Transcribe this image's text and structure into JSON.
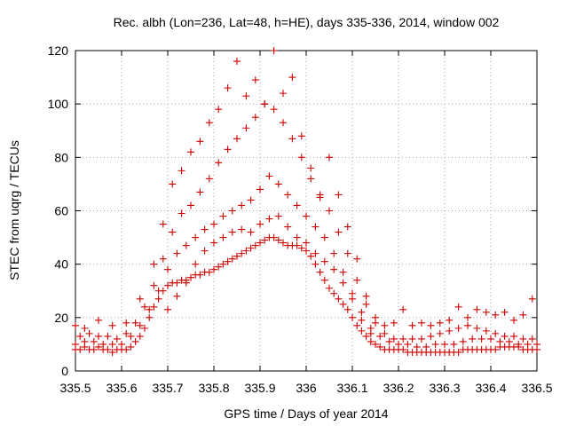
{
  "chart_data": {
    "type": "scatter",
    "title": "Rec. albh (Lon=236, Lat=48, h=HE), days 335-336, 2014, window 002",
    "xlabel": "GPS time / Days of year 2014",
    "ylabel": "STEC from uqrg / TECUs",
    "xlim": [
      335.5,
      336.5
    ],
    "ylim": [
      0,
      120
    ],
    "x_ticks": [
      "335.5",
      "335.6",
      "335.7",
      "335.8",
      "335.9",
      "336",
      "336.1",
      "336.2",
      "336.3",
      "336.4",
      "336.5"
    ],
    "y_ticks": [
      "0",
      "20",
      "40",
      "60",
      "80",
      "100",
      "120"
    ],
    "grid": true,
    "marker": "+",
    "color": "#cc0000",
    "series": [
      {
        "points": [
          [
            335.5,
            8
          ],
          [
            335.51,
            8
          ],
          [
            335.52,
            9
          ],
          [
            335.53,
            8
          ],
          [
            335.54,
            8
          ],
          [
            335.55,
            9
          ],
          [
            335.56,
            8
          ],
          [
            335.57,
            8
          ],
          [
            335.58,
            7
          ],
          [
            335.59,
            8
          ],
          [
            335.6,
            8
          ],
          [
            335.61,
            8
          ],
          [
            335.62,
            9
          ],
          [
            335.63,
            11
          ],
          [
            335.64,
            13
          ],
          [
            335.65,
            16
          ],
          [
            335.66,
            20
          ],
          [
            335.67,
            24
          ],
          [
            335.68,
            27
          ],
          [
            335.69,
            30
          ],
          [
            335.7,
            32
          ],
          [
            335.71,
            33
          ],
          [
            335.72,
            33
          ],
          [
            335.73,
            34
          ],
          [
            335.74,
            34
          ],
          [
            335.75,
            35
          ],
          [
            335.76,
            36
          ],
          [
            335.77,
            36
          ],
          [
            335.78,
            37
          ],
          [
            335.79,
            37
          ],
          [
            335.8,
            38
          ],
          [
            335.81,
            39
          ],
          [
            335.82,
            40
          ],
          [
            335.83,
            41
          ],
          [
            335.84,
            42
          ],
          [
            335.85,
            43
          ],
          [
            335.86,
            44
          ],
          [
            335.87,
            45
          ],
          [
            335.88,
            46
          ],
          [
            335.89,
            47
          ],
          [
            335.9,
            48
          ],
          [
            335.91,
            49
          ],
          [
            335.92,
            50
          ],
          [
            335.93,
            50
          ],
          [
            335.94,
            49
          ],
          [
            335.95,
            48
          ],
          [
            335.96,
            47
          ],
          [
            335.97,
            47
          ],
          [
            335.98,
            47
          ],
          [
            335.99,
            46
          ],
          [
            336.0,
            45
          ],
          [
            336.01,
            43
          ],
          [
            336.02,
            40
          ],
          [
            336.03,
            37
          ],
          [
            336.04,
            34
          ],
          [
            336.05,
            31
          ],
          [
            336.06,
            29
          ],
          [
            336.07,
            27
          ],
          [
            336.08,
            25
          ],
          [
            336.09,
            23
          ],
          [
            336.1,
            20
          ],
          [
            336.11,
            17
          ],
          [
            336.12,
            15
          ],
          [
            336.13,
            13
          ],
          [
            336.14,
            11
          ],
          [
            336.15,
            10
          ],
          [
            336.16,
            9
          ],
          [
            336.17,
            8
          ],
          [
            336.18,
            8
          ],
          [
            336.19,
            8
          ],
          [
            336.2,
            8
          ],
          [
            336.21,
            8
          ],
          [
            336.22,
            7
          ],
          [
            336.23,
            7
          ],
          [
            336.24,
            7
          ],
          [
            336.25,
            7
          ],
          [
            336.26,
            7
          ],
          [
            336.27,
            7
          ],
          [
            336.28,
            7
          ],
          [
            336.29,
            7
          ],
          [
            336.3,
            7
          ],
          [
            336.31,
            7
          ],
          [
            336.32,
            7
          ],
          [
            336.33,
            7
          ],
          [
            336.34,
            8
          ],
          [
            336.35,
            8
          ],
          [
            336.36,
            8
          ],
          [
            336.37,
            8
          ],
          [
            336.38,
            8
          ],
          [
            336.39,
            8
          ],
          [
            336.4,
            8
          ],
          [
            336.41,
            8
          ],
          [
            336.42,
            9
          ],
          [
            336.43,
            9
          ],
          [
            336.44,
            9
          ],
          [
            336.45,
            9
          ],
          [
            336.46,
            9
          ],
          [
            336.47,
            8
          ],
          [
            336.48,
            8
          ],
          [
            336.49,
            8
          ],
          [
            336.5,
            8
          ]
        ]
      },
      {
        "points": [
          [
            335.5,
            10
          ],
          [
            335.52,
            11
          ],
          [
            335.54,
            11
          ],
          [
            335.56,
            10
          ],
          [
            335.58,
            10
          ],
          [
            335.6,
            10
          ],
          [
            335.62,
            13
          ],
          [
            335.64,
            17
          ],
          [
            335.66,
            23
          ],
          [
            335.68,
            30
          ],
          [
            335.7,
            38
          ],
          [
            335.72,
            44
          ],
          [
            335.74,
            47
          ],
          [
            335.76,
            50
          ],
          [
            335.78,
            53
          ],
          [
            335.8,
            55
          ],
          [
            335.82,
            58
          ],
          [
            335.84,
            60
          ],
          [
            335.86,
            62
          ],
          [
            335.88,
            64
          ],
          [
            335.9,
            68
          ],
          [
            335.92,
            73
          ],
          [
            335.94,
            70
          ],
          [
            335.96,
            66
          ],
          [
            335.98,
            62
          ],
          [
            336.0,
            58
          ],
          [
            336.02,
            54
          ],
          [
            336.04,
            50
          ],
          [
            336.06,
            44
          ],
          [
            336.08,
            37
          ],
          [
            336.1,
            29
          ],
          [
            336.12,
            22
          ],
          [
            336.14,
            16
          ],
          [
            336.16,
            13
          ],
          [
            336.18,
            11
          ],
          [
            336.2,
            10
          ],
          [
            336.22,
            10
          ],
          [
            336.24,
            9
          ],
          [
            336.26,
            9
          ],
          [
            336.28,
            10
          ],
          [
            336.3,
            10
          ],
          [
            336.32,
            10
          ],
          [
            336.34,
            11
          ],
          [
            336.36,
            12
          ],
          [
            336.38,
            12
          ],
          [
            336.4,
            12
          ],
          [
            336.42,
            11
          ],
          [
            336.44,
            11
          ],
          [
            336.46,
            10
          ],
          [
            336.48,
            10
          ],
          [
            336.5,
            10
          ]
        ]
      },
      {
        "points": [
          [
            335.51,
            13
          ],
          [
            335.53,
            14
          ],
          [
            335.55,
            13
          ],
          [
            335.57,
            13
          ],
          [
            335.59,
            12
          ],
          [
            335.61,
            14
          ],
          [
            335.63,
            18
          ],
          [
            335.65,
            24
          ],
          [
            335.67,
            32
          ],
          [
            335.69,
            42
          ],
          [
            335.71,
            52
          ],
          [
            335.73,
            59
          ],
          [
            335.75,
            62
          ],
          [
            335.77,
            67
          ],
          [
            335.79,
            72
          ],
          [
            335.81,
            78
          ],
          [
            335.83,
            83
          ],
          [
            335.85,
            87
          ],
          [
            335.87,
            91
          ],
          [
            335.89,
            95
          ],
          [
            335.91,
            100
          ],
          [
            335.93,
            98
          ],
          [
            335.95,
            93
          ],
          [
            335.97,
            87
          ],
          [
            335.99,
            80
          ],
          [
            336.01,
            72
          ],
          [
            336.03,
            65
          ],
          [
            336.05,
            60
          ],
          [
            336.07,
            52
          ],
          [
            336.09,
            44
          ],
          [
            336.11,
            34
          ],
          [
            336.13,
            25
          ],
          [
            336.15,
            18
          ],
          [
            336.17,
            14
          ],
          [
            336.19,
            12
          ],
          [
            336.21,
            12
          ],
          [
            336.23,
            12
          ],
          [
            336.25,
            12
          ],
          [
            336.27,
            13
          ],
          [
            336.29,
            14
          ],
          [
            336.31,
            15
          ],
          [
            336.33,
            16
          ],
          [
            336.35,
            17
          ],
          [
            336.37,
            16
          ],
          [
            336.39,
            15
          ],
          [
            336.41,
            14
          ],
          [
            336.43,
            13
          ],
          [
            336.45,
            13
          ],
          [
            336.47,
            12
          ],
          [
            336.49,
            12
          ]
        ]
      },
      {
        "points": [
          [
            335.5,
            17
          ],
          [
            335.52,
            16
          ],
          [
            335.55,
            19
          ],
          [
            335.58,
            17
          ],
          [
            335.61,
            18
          ],
          [
            335.64,
            27
          ],
          [
            335.67,
            40
          ],
          [
            335.69,
            55
          ],
          [
            335.71,
            70
          ],
          [
            335.73,
            75
          ],
          [
            335.75,
            82
          ],
          [
            335.77,
            86
          ],
          [
            335.79,
            93
          ],
          [
            335.81,
            98
          ],
          [
            335.83,
            106
          ],
          [
            335.85,
            116
          ],
          [
            335.87,
            103
          ],
          [
            335.89,
            109
          ],
          [
            335.91,
            100
          ],
          [
            335.93,
            120
          ],
          [
            335.95,
            104
          ],
          [
            335.97,
            110
          ],
          [
            335.99,
            88
          ],
          [
            336.01,
            76
          ],
          [
            336.03,
            66
          ],
          [
            336.05,
            80
          ],
          [
            336.07,
            66
          ],
          [
            336.09,
            54
          ],
          [
            336.11,
            42
          ],
          [
            336.13,
            28
          ],
          [
            336.15,
            20
          ],
          [
            336.17,
            17
          ],
          [
            336.19,
            18
          ],
          [
            336.21,
            23
          ],
          [
            336.23,
            17
          ],
          [
            336.25,
            18
          ],
          [
            336.27,
            17
          ],
          [
            336.29,
            18
          ],
          [
            336.31,
            19
          ],
          [
            336.33,
            24
          ],
          [
            336.35,
            20
          ],
          [
            336.37,
            23
          ],
          [
            336.39,
            22
          ],
          [
            336.41,
            21
          ],
          [
            336.43,
            22
          ],
          [
            336.45,
            19
          ],
          [
            336.47,
            21
          ],
          [
            336.49,
            27
          ]
        ]
      },
      {
        "points": [
          [
            335.7,
            23
          ],
          [
            335.72,
            28
          ],
          [
            335.74,
            33
          ],
          [
            335.76,
            40
          ],
          [
            335.78,
            45
          ],
          [
            335.8,
            48
          ],
          [
            335.82,
            50
          ],
          [
            335.84,
            52
          ],
          [
            335.86,
            53
          ],
          [
            335.88,
            52
          ],
          [
            335.9,
            55
          ],
          [
            335.92,
            57
          ],
          [
            335.94,
            58
          ],
          [
            335.96,
            54
          ],
          [
            335.98,
            50
          ],
          [
            336.0,
            48
          ],
          [
            336.02,
            44
          ],
          [
            336.04,
            41
          ],
          [
            336.06,
            38
          ],
          [
            336.08,
            33
          ],
          [
            336.1,
            27
          ],
          [
            336.12,
            19
          ],
          [
            336.14,
            14
          ]
        ]
      }
    ]
  }
}
